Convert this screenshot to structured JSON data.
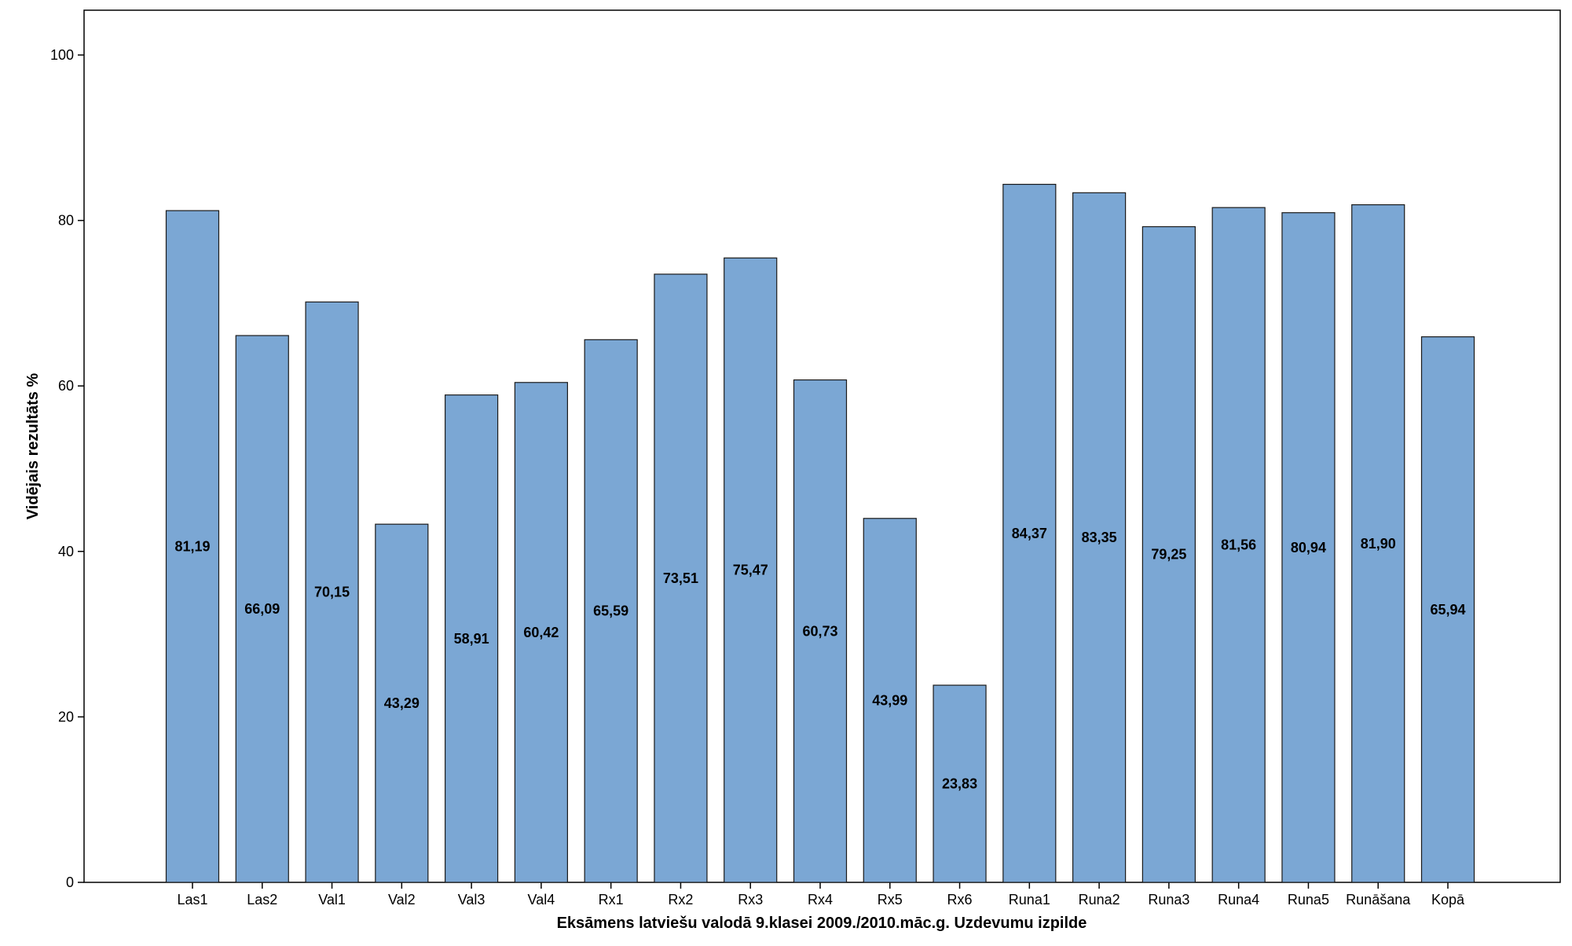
{
  "chart_data": {
    "type": "bar",
    "xlabel": "Eksāmens latviešu valodā 9.klasei 2009./2010.māc.g. Uzdevumu izpilde",
    "ylabel": "Vidējais rezultāts %",
    "ylim": [
      0,
      105
    ],
    "yticks": [
      0,
      20,
      40,
      60,
      80,
      100
    ],
    "grid": false,
    "bar_color": "#7BA7D4",
    "bar_edge_color": "#1a1a1a",
    "categories": [
      "Las1",
      "Las2",
      "Val1",
      "Val2",
      "Val3",
      "Val4",
      "Rx1",
      "Rx2",
      "Rx3",
      "Rx4",
      "Rx5",
      "Rx6",
      "Runa1",
      "Runa2",
      "Runa3",
      "Runa4",
      "Runa5",
      "Runāšana",
      "Kopā"
    ],
    "values": [
      81.19,
      66.09,
      70.15,
      43.29,
      58.91,
      60.42,
      65.59,
      73.51,
      75.47,
      60.73,
      43.99,
      23.83,
      84.37,
      83.35,
      79.25,
      81.56,
      80.94,
      81.9,
      65.94
    ],
    "value_labels": [
      "81,19",
      "66,09",
      "70,15",
      "43,29",
      "58,91",
      "60,42",
      "65,59",
      "73,51",
      "75,47",
      "60,73",
      "43,99",
      "23,83",
      "84,37",
      "83,35",
      "79,25",
      "81,56",
      "80,94",
      "81,90",
      "65,94"
    ]
  }
}
